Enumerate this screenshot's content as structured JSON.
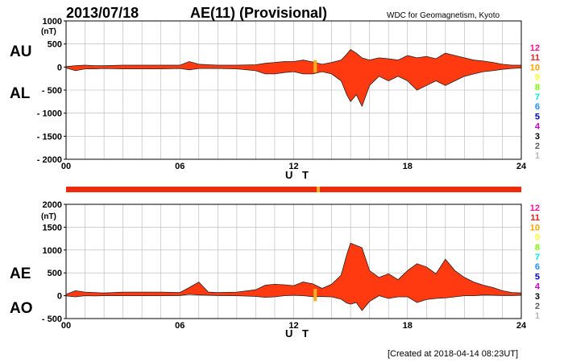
{
  "header": {
    "date": "2013/07/18",
    "title": "AE(11) (Provisional)",
    "source": "WDC for Geomagnetism, Kyoto"
  },
  "footer": {
    "created": "[Created at 2018-04-14 08:23UT]"
  },
  "colors": {
    "area_fill": "#ff3a10",
    "highlight": "#f0b020",
    "station_bar": "#ee2a0a"
  },
  "legend": {
    "items": [
      {
        "label": "12",
        "color": "#ff1493"
      },
      {
        "label": "11",
        "color": "#ee2222"
      },
      {
        "label": "10",
        "color": "#ffa500"
      },
      {
        "label": "9",
        "color": "#ffff33"
      },
      {
        "label": "8",
        "color": "#7cfc00"
      },
      {
        "label": "7",
        "color": "#00e5ee"
      },
      {
        "label": "6",
        "color": "#1e90ff"
      },
      {
        "label": "5",
        "color": "#0000cd"
      },
      {
        "label": "4",
        "color": "#cc00cc"
      },
      {
        "label": "3",
        "color": "#000000"
      },
      {
        "label": "2",
        "color": "#606060"
      },
      {
        "label": "1",
        "color": "#b8b8b8"
      }
    ]
  },
  "chart_data": [
    {
      "type": "area",
      "left_labels": [
        "AU",
        "AL"
      ],
      "unit": "(nT)",
      "xlabel": "U T",
      "xticks": [
        "00",
        "06",
        "12",
        "18",
        "24"
      ],
      "xlim": [
        0,
        24
      ],
      "ylim": [
        -2000,
        1000
      ],
      "yticks": [
        1000,
        500,
        0,
        -500,
        -1000,
        -1500,
        -2000
      ],
      "series": [
        {
          "key": "AU",
          "x": [
            0,
            0.5,
            1,
            1.5,
            2,
            3,
            4,
            5,
            6,
            6.5,
            7,
            7.5,
            8,
            9,
            10,
            10.5,
            11,
            11.5,
            12,
            12.5,
            13,
            13.5,
            14,
            14.5,
            14.8,
            15,
            15.3,
            15.6,
            16,
            16.5,
            17,
            17.5,
            18,
            18.5,
            19,
            19.5,
            20,
            20.5,
            21,
            21.5,
            22,
            22.5,
            23,
            23.5,
            24
          ],
          "values": [
            10,
            30,
            40,
            30,
            30,
            40,
            40,
            40,
            40,
            120,
            60,
            50,
            40,
            40,
            50,
            80,
            100,
            120,
            120,
            150,
            110,
            60,
            100,
            150,
            280,
            380,
            300,
            200,
            150,
            200,
            180,
            150,
            250,
            200,
            230,
            180,
            300,
            250,
            200,
            150,
            130,
            100,
            60,
            40,
            40
          ]
        },
        {
          "key": "AL",
          "x": [
            0,
            0.5,
            1,
            1.5,
            2,
            3,
            4,
            5,
            6,
            6.5,
            7,
            7.5,
            8,
            9,
            10,
            10.5,
            11,
            11.5,
            12,
            12.5,
            13,
            13.5,
            14,
            14.5,
            14.8,
            15,
            15.3,
            15.6,
            16,
            16.5,
            17,
            17.5,
            18,
            18.5,
            19,
            19.5,
            20,
            20.5,
            21,
            21.5,
            22,
            22.5,
            23,
            23.5,
            24
          ],
          "values": [
            -20,
            -80,
            -40,
            -40,
            -30,
            -40,
            -40,
            -40,
            -30,
            -60,
            -30,
            -30,
            -30,
            -40,
            -80,
            -150,
            -150,
            -120,
            -100,
            -150,
            -150,
            -100,
            -150,
            -300,
            -600,
            -750,
            -600,
            -850,
            -400,
            -200,
            -300,
            -200,
            -300,
            -500,
            -400,
            -300,
            -400,
            -300,
            -200,
            -150,
            -100,
            -80,
            -50,
            -30,
            -20
          ]
        }
      ]
    },
    {
      "type": "area",
      "left_labels": [
        "AE",
        "AO"
      ],
      "unit": "(nT)",
      "xlabel": "U T",
      "xticks": [
        "00",
        "06",
        "12",
        "18",
        "24"
      ],
      "xlim": [
        0,
        24
      ],
      "ylim": [
        -500,
        2000
      ],
      "yticks": [
        2000,
        1500,
        1000,
        500,
        0,
        -500
      ],
      "series": [
        {
          "key": "AE",
          "x": [
            0,
            0.5,
            1,
            1.5,
            2,
            3,
            4,
            5,
            6,
            6.5,
            7,
            7.5,
            8,
            9,
            10,
            10.5,
            11,
            11.5,
            12,
            12.5,
            13,
            13.5,
            14,
            14.5,
            14.8,
            15,
            15.3,
            15.6,
            16,
            16.5,
            17,
            17.5,
            18,
            18.5,
            19,
            19.5,
            20,
            20.5,
            21,
            21.5,
            22,
            22.5,
            23,
            23.5,
            24
          ],
          "values": [
            30,
            110,
            80,
            70,
            60,
            80,
            80,
            80,
            70,
            180,
            300,
            80,
            70,
            80,
            130,
            230,
            250,
            240,
            220,
            300,
            260,
            160,
            250,
            450,
            900,
            1150,
            1100,
            1050,
            550,
            400,
            480,
            350,
            550,
            700,
            630,
            480,
            800,
            550,
            400,
            300,
            230,
            180,
            110,
            70,
            60
          ]
        },
        {
          "key": "AO",
          "x": [
            0,
            0.5,
            1,
            1.5,
            2,
            3,
            4,
            5,
            6,
            6.5,
            7,
            7.5,
            8,
            9,
            10,
            10.5,
            11,
            11.5,
            12,
            12.5,
            13,
            13.5,
            14,
            14.5,
            14.8,
            15,
            15.3,
            15.6,
            16,
            16.5,
            17,
            17.5,
            18,
            18.5,
            19,
            19.5,
            20,
            20.5,
            21,
            21.5,
            22,
            22.5,
            23,
            23.5,
            24
          ],
          "values": [
            -5,
            -25,
            0,
            -5,
            0,
            0,
            0,
            0,
            5,
            30,
            15,
            10,
            5,
            0,
            -15,
            -35,
            -25,
            0,
            10,
            0,
            -20,
            -20,
            -25,
            -75,
            -160,
            -185,
            -150,
            -325,
            -125,
            0,
            -60,
            -25,
            -25,
            -150,
            -85,
            -60,
            -50,
            -25,
            0,
            0,
            15,
            10,
            5,
            5,
            10
          ]
        }
      ]
    }
  ]
}
